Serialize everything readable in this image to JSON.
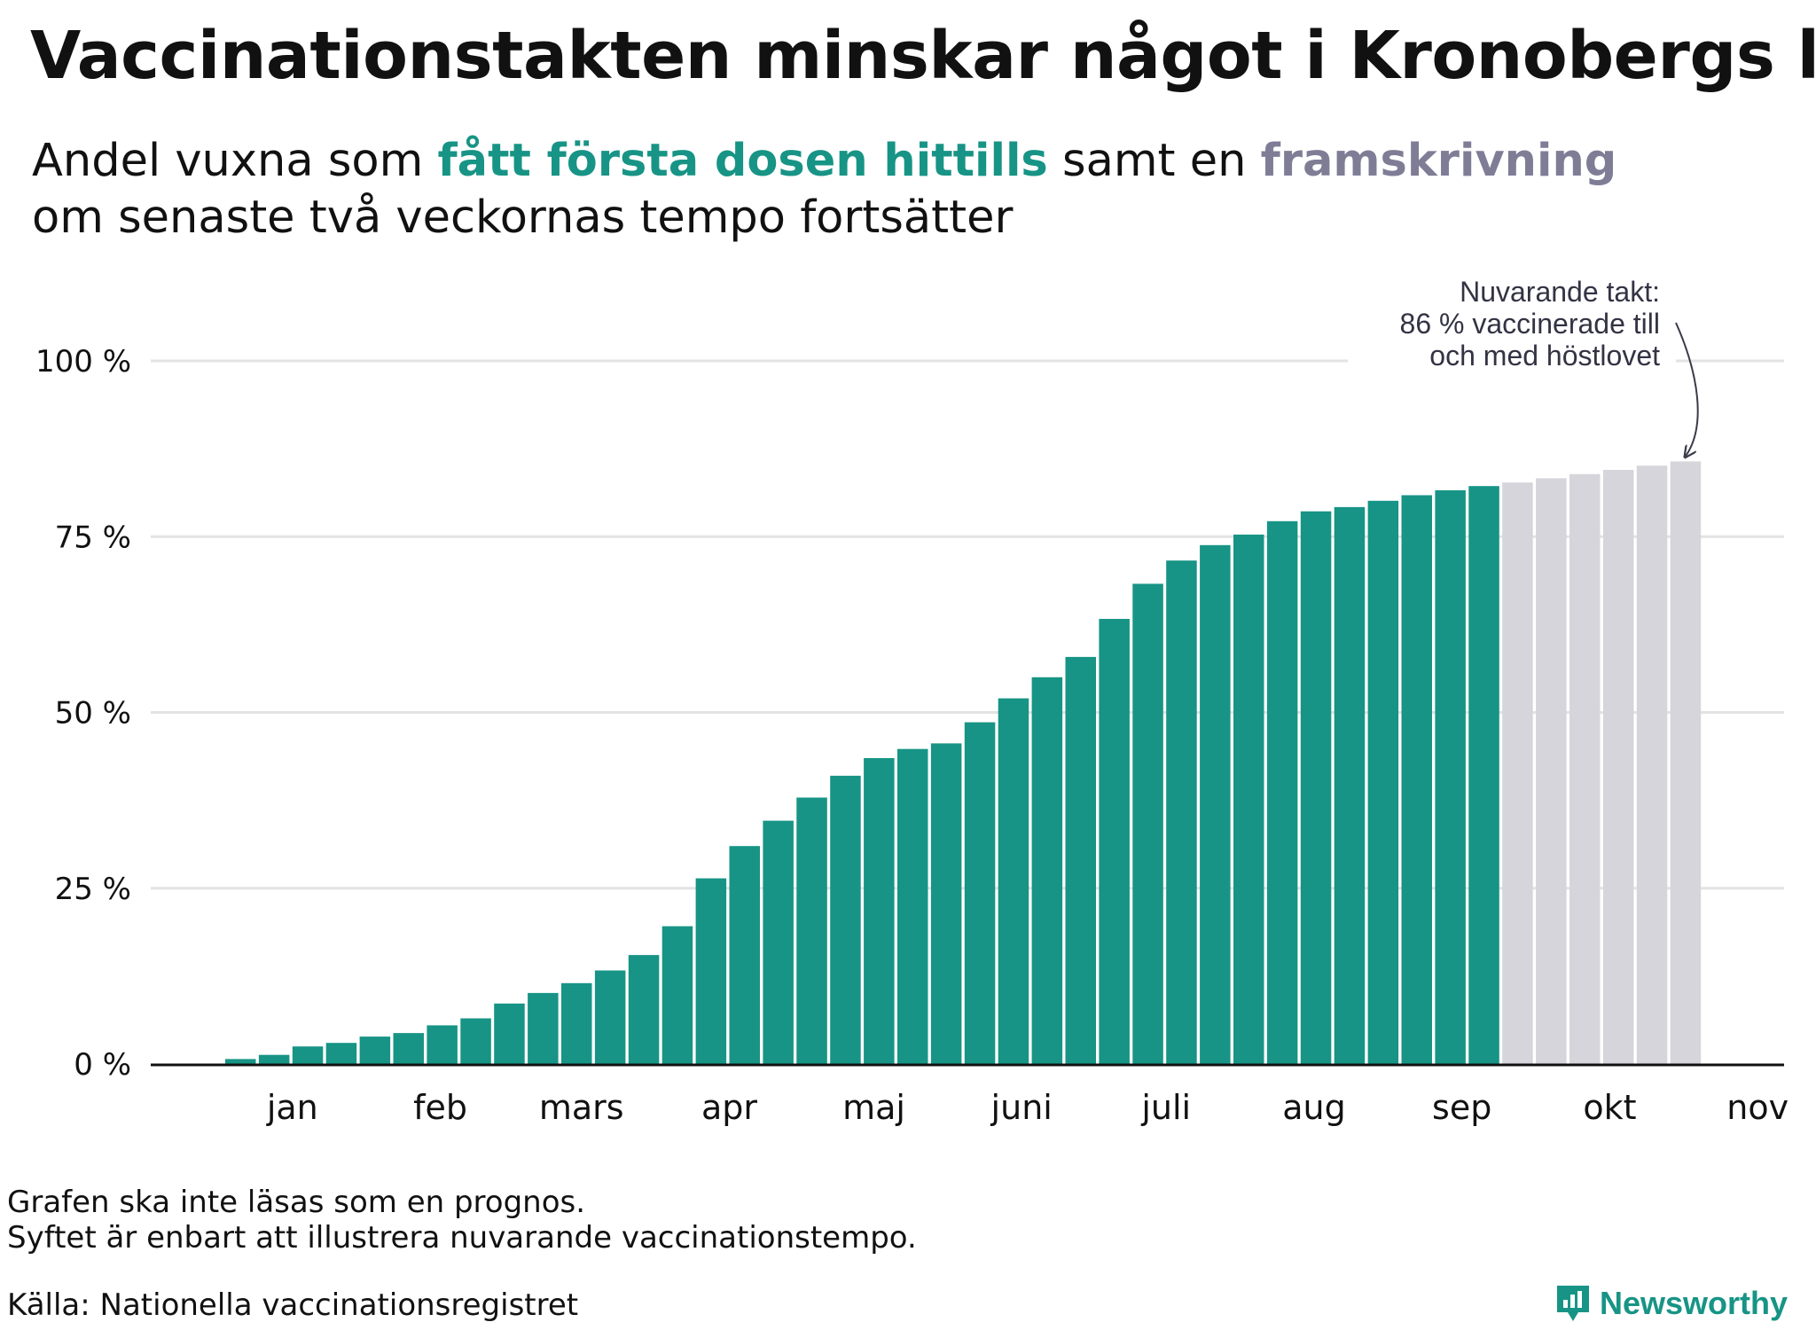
{
  "title": "Vaccinationstakten minskar något i Kronobergs län",
  "subtitle": {
    "part1": "Andel vuxna som ",
    "highlight1": "fått första dosen hittills",
    "part2": " samt en ",
    "highlight2": "framskrivning",
    "line2": "om senaste två veckornas tempo fortsätter"
  },
  "colors": {
    "actual": "#179485",
    "projection": "#d5d5db",
    "grid": "#e3e3e3",
    "axis": "#111111"
  },
  "chart_data": {
    "type": "bar",
    "ylim": [
      0,
      100
    ],
    "yticks": [
      {
        "value": 0,
        "label": "0 %"
      },
      {
        "value": 25,
        "label": "25 %"
      },
      {
        "value": 50,
        "label": "50 %"
      },
      {
        "value": 75,
        "label": "75 %"
      },
      {
        "value": 100,
        "label": "100 %"
      }
    ],
    "grid": true,
    "x_unit": "week",
    "month_labels": [
      {
        "label": "jan",
        "at": 2.0
      },
      {
        "label": "feb",
        "at": 6.4
      },
      {
        "label": "mars",
        "at": 10.6
      },
      {
        "label": "apr",
        "at": 15.0
      },
      {
        "label": "maj",
        "at": 19.3
      },
      {
        "label": "juni",
        "at": 23.7
      },
      {
        "label": "juli",
        "at": 28.0
      },
      {
        "label": "aug",
        "at": 32.4
      },
      {
        "label": "sep",
        "at": 36.8
      },
      {
        "label": "okt",
        "at": 41.2
      },
      {
        "label": "nov",
        "at": 45.6
      }
    ],
    "series": [
      {
        "name": "fått första dosen hittills",
        "color": "#179485",
        "values": [
          0.7,
          1.3,
          2.5,
          3.0,
          3.9,
          4.4,
          5.5,
          6.5,
          8.6,
          10.1,
          11.5,
          13.3,
          15.5,
          19.6,
          26.4,
          31.0,
          34.6,
          37.9,
          41.0,
          43.5,
          44.8,
          45.6,
          48.6,
          52.0,
          55.0,
          57.9,
          63.3,
          68.3,
          71.6,
          73.8,
          75.3,
          77.2,
          78.6,
          79.2,
          80.1,
          80.9,
          81.6,
          82.2
        ]
      },
      {
        "name": "framskrivning",
        "color": "#d5d5db",
        "values": [
          82.7,
          83.3,
          83.9,
          84.5,
          85.1,
          85.7
        ]
      }
    ],
    "annotation": {
      "lines": [
        "Nuvarande takt:",
        "86 % vaccinerade till",
        "och med höstlovet"
      ]
    }
  },
  "footnote": {
    "line1": "Grafen ska inte läsas som en prognos.",
    "line2": "Syftet är enbart att illustrera nuvarande vaccinationstempo."
  },
  "source": "Källa: Nationella vaccinationsregistret",
  "brand": "Newsworthy"
}
